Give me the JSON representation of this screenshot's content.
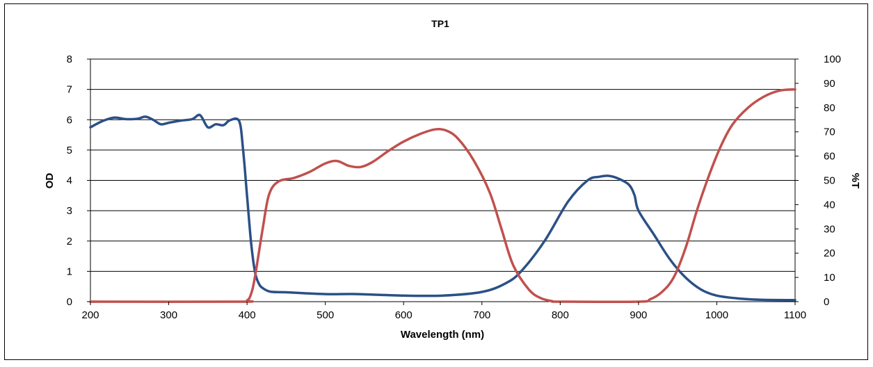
{
  "chart_data": {
    "type": "line",
    "title": "TP1",
    "xlabel": "Wavelength (nm)",
    "ylabel_left": "OD",
    "ylabel_right": "%T",
    "xlim": [
      200,
      1100
    ],
    "ylim_left": [
      0,
      8
    ],
    "ylim_right": [
      0,
      100
    ],
    "x_ticks": [
      200,
      300,
      400,
      500,
      600,
      700,
      800,
      900,
      1000,
      1100
    ],
    "y_ticks_left": [
      0,
      1,
      2,
      3,
      4,
      5,
      6,
      7,
      8
    ],
    "y_ticks_right": [
      0,
      10,
      20,
      30,
      40,
      50,
      60,
      70,
      80,
      90,
      100
    ],
    "grid": "horizontal",
    "legend": "none",
    "series": [
      {
        "axis": "left",
        "color": "#2B5087",
        "points": [
          [
            200,
            5.75
          ],
          [
            215,
            5.95
          ],
          [
            230,
            6.07
          ],
          [
            245,
            6.02
          ],
          [
            260,
            6.03
          ],
          [
            270,
            6.1
          ],
          [
            280,
            6.0
          ],
          [
            290,
            5.85
          ],
          [
            300,
            5.9
          ],
          [
            315,
            5.97
          ],
          [
            330,
            6.02
          ],
          [
            340,
            6.15
          ],
          [
            350,
            5.75
          ],
          [
            360,
            5.85
          ],
          [
            370,
            5.82
          ],
          [
            378,
            5.98
          ],
          [
            390,
            5.95
          ],
          [
            395,
            5.0
          ],
          [
            400,
            3.5
          ],
          [
            405,
            2.0
          ],
          [
            410,
            1.0
          ],
          [
            415,
            0.6
          ],
          [
            420,
            0.45
          ],
          [
            430,
            0.33
          ],
          [
            450,
            0.31
          ],
          [
            500,
            0.25
          ],
          [
            540,
            0.25
          ],
          [
            600,
            0.2
          ],
          [
            650,
            0.2
          ],
          [
            700,
            0.32
          ],
          [
            730,
            0.6
          ],
          [
            750,
            1.0
          ],
          [
            780,
            2.0
          ],
          [
            810,
            3.3
          ],
          [
            835,
            4.0
          ],
          [
            850,
            4.12
          ],
          [
            862,
            4.15
          ],
          [
            875,
            4.05
          ],
          [
            888,
            3.85
          ],
          [
            895,
            3.5
          ],
          [
            900,
            3.0
          ],
          [
            920,
            2.2
          ],
          [
            940,
            1.4
          ],
          [
            960,
            0.8
          ],
          [
            980,
            0.4
          ],
          [
            1000,
            0.2
          ],
          [
            1030,
            0.1
          ],
          [
            1060,
            0.06
          ],
          [
            1100,
            0.05
          ]
        ]
      },
      {
        "axis": "right",
        "color": "#C0504D",
        "points": [
          [
            200,
            0
          ],
          [
            390,
            0
          ],
          [
            400,
            0.5
          ],
          [
            405,
            3
          ],
          [
            410,
            10
          ],
          [
            420,
            30
          ],
          [
            428,
            44
          ],
          [
            440,
            49.5
          ],
          [
            460,
            51
          ],
          [
            480,
            53.5
          ],
          [
            500,
            57
          ],
          [
            515,
            58
          ],
          [
            530,
            56
          ],
          [
            545,
            55.5
          ],
          [
            560,
            57.5
          ],
          [
            580,
            62
          ],
          [
            600,
            66
          ],
          [
            620,
            69
          ],
          [
            640,
            71
          ],
          [
            655,
            70.5
          ],
          [
            670,
            67
          ],
          [
            690,
            58
          ],
          [
            710,
            45
          ],
          [
            725,
            30
          ],
          [
            740,
            15
          ],
          [
            760,
            5
          ],
          [
            775,
            1.5
          ],
          [
            790,
            0.2
          ],
          [
            800,
            0
          ],
          [
            900,
            0
          ],
          [
            915,
            1
          ],
          [
            930,
            4
          ],
          [
            945,
            10
          ],
          [
            960,
            22
          ],
          [
            975,
            38
          ],
          [
            990,
            52
          ],
          [
            1005,
            64
          ],
          [
            1020,
            73
          ],
          [
            1040,
            80
          ],
          [
            1060,
            84.5
          ],
          [
            1080,
            87
          ],
          [
            1100,
            87.5
          ]
        ]
      }
    ]
  }
}
